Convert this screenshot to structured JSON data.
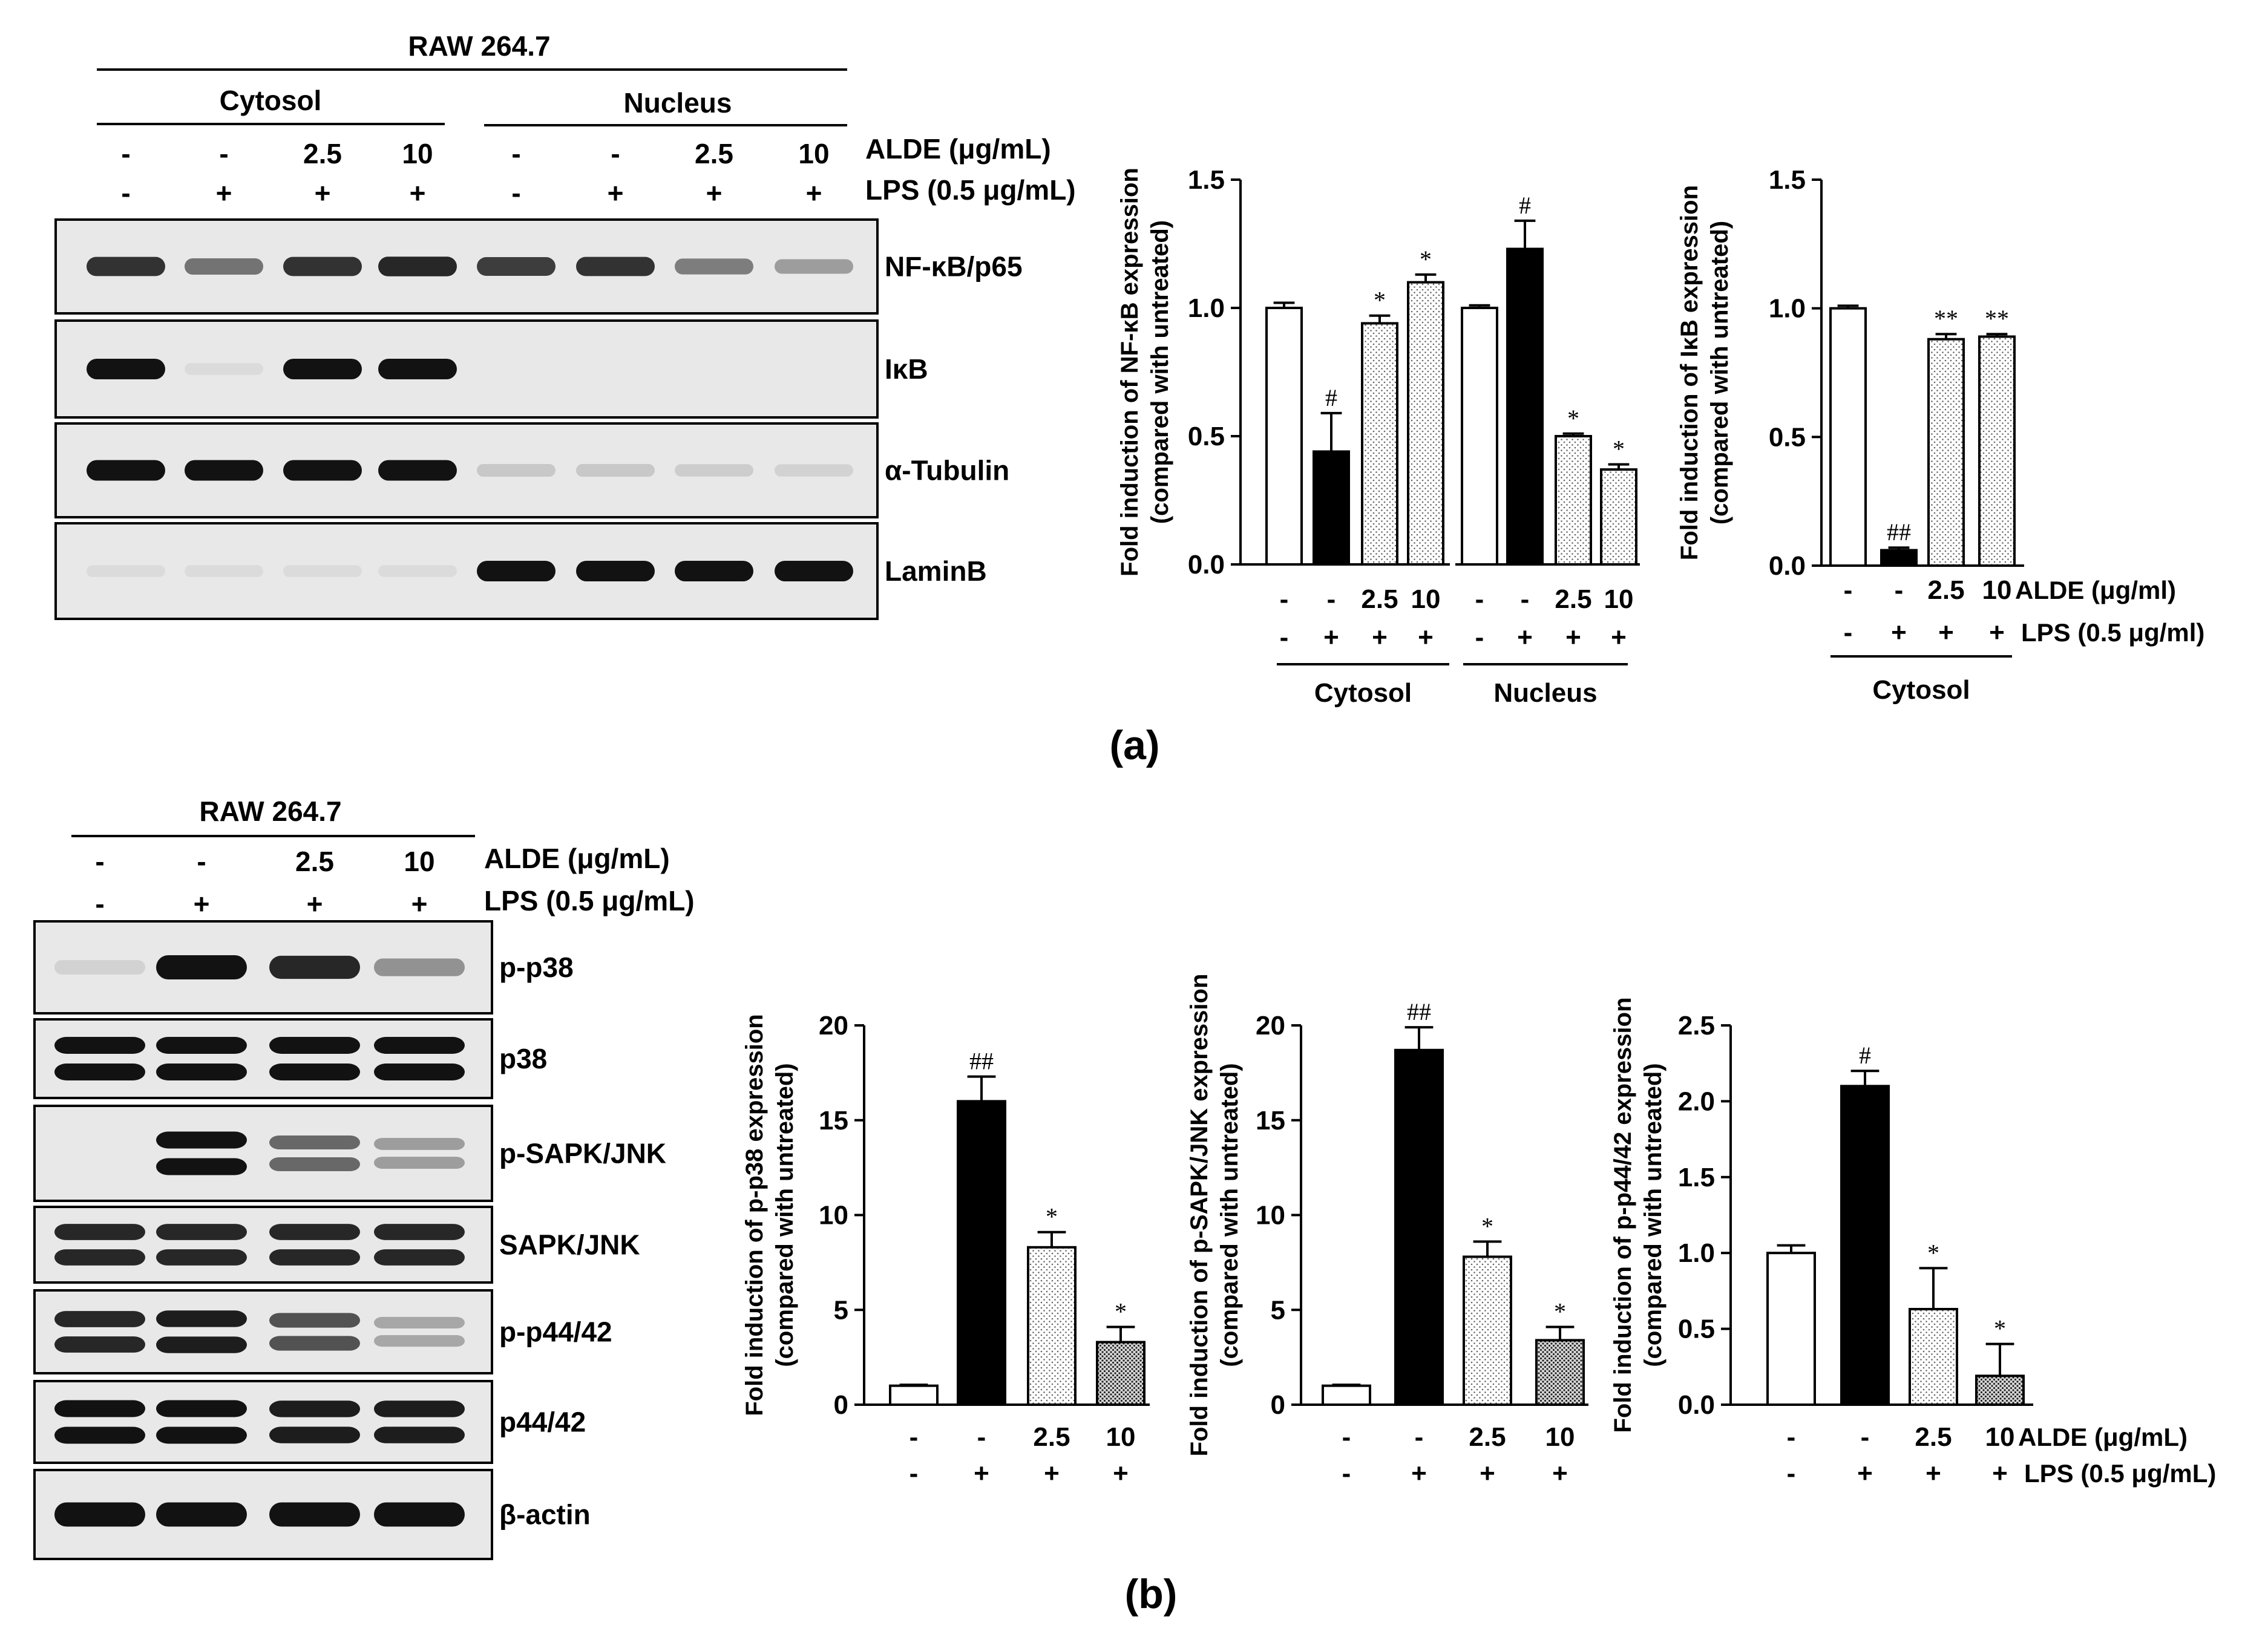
{
  "panel_a": {
    "cell_line": "RAW 264.7",
    "cytosol_label": "Cytosol",
    "nucleus_label": "Nucleus",
    "aldes": [
      "-",
      "-",
      "2.5",
      "10",
      "-",
      "-",
      "2.5",
      "10"
    ],
    "lps": [
      "-",
      "+",
      "+",
      "+",
      "-",
      "+",
      "+",
      "+"
    ],
    "ald_label": "ALDE (μg/mL)",
    "lps_label": "LPS (0.5 μg/mL)",
    "blot_labels": [
      "NF-κB/p65",
      "IκB",
      "α-Tubulin",
      "LaminB"
    ],
    "blots": [
      [
        0.85,
        0.55,
        0.85,
        0.9,
        0.8,
        0.85,
        0.5,
        0.35
      ],
      [
        1.0,
        0.05,
        1.0,
        1.0,
        0,
        0,
        0,
        0
      ],
      [
        1.0,
        1.0,
        1.0,
        1.0,
        0.15,
        0.15,
        0.12,
        0.1
      ],
      [
        0.05,
        0.05,
        0.05,
        0.05,
        1.0,
        1.0,
        1.0,
        1.0
      ]
    ],
    "caption": "(a)"
  },
  "panel_b": {
    "cell_line": "RAW 264.7",
    "aldes": [
      "-",
      "-",
      "2.5",
      "10"
    ],
    "lps": [
      "-",
      "+",
      "+",
      "+"
    ],
    "ald_label": "ALDE (μg/mL)",
    "lps_label": "LPS (0.5 μg/mL)",
    "blot_labels": [
      "p-p38",
      "p38",
      "p-SAPK/JNK",
      "SAPK/JNK",
      "p-p44/42",
      "p44/42",
      "β-actin"
    ],
    "blots": [
      [
        0.1,
        1.0,
        0.9,
        0.4
      ],
      [
        1.0,
        1.0,
        1.0,
        1.0
      ],
      [
        0.0,
        1.0,
        0.6,
        0.35
      ],
      [
        0.9,
        0.9,
        0.9,
        0.9
      ],
      [
        0.9,
        0.95,
        0.7,
        0.3
      ],
      [
        1.0,
        1.0,
        0.95,
        0.95
      ],
      [
        1.0,
        1.0,
        1.0,
        1.0
      ]
    ],
    "caption": "(b)"
  },
  "chart_data": [
    {
      "type": "bar",
      "ylabel": "Fold induction of NF-κB expression (compared with untreated)",
      "ylim": [
        0,
        1.5
      ],
      "yticks": [
        "0.0",
        "0.5",
        "1.0",
        "1.5"
      ],
      "ald": [
        "-",
        "-",
        "2.5",
        "10",
        "-",
        "-",
        "2.5",
        "10"
      ],
      "lps": [
        "-",
        "+",
        "+",
        "+",
        "-",
        "+",
        "+",
        "+"
      ],
      "groups": [
        "Cytosol",
        "Nucleus"
      ],
      "values": [
        1.0,
        0.44,
        0.94,
        1.1,
        1.0,
        1.23,
        0.5,
        0.37
      ],
      "errors": [
        0.02,
        0.15,
        0.03,
        0.03,
        0.01,
        0.11,
        0.01,
        0.02
      ],
      "marks": [
        "",
        "#",
        "*",
        "*",
        "",
        "#",
        "*",
        "*"
      ]
    },
    {
      "type": "bar",
      "ylabel": "Fold induction of IκB expression (compared with untreated)",
      "ylim": [
        0,
        1.5
      ],
      "yticks": [
        "0.0",
        "0.5",
        "1.0",
        "1.5"
      ],
      "ald": [
        "-",
        "-",
        "2.5",
        "10"
      ],
      "lps": [
        "-",
        "+",
        "+",
        "+"
      ],
      "ald_label": "ALDE (μg/ml)",
      "lps_label": "LPS (0.5 μg/ml)",
      "groups": [
        "Cytosol"
      ],
      "values": [
        1.0,
        0.06,
        0.88,
        0.89
      ],
      "errors": [
        0.01,
        0.01,
        0.02,
        0.01
      ],
      "marks": [
        "",
        "##",
        "**",
        "**"
      ]
    },
    {
      "type": "bar",
      "ylabel": "Fold induction of p-p38 expression (compared with untreated)",
      "ylim": [
        0,
        20
      ],
      "yticks": [
        "0",
        "5",
        "10",
        "15",
        "20"
      ],
      "ald": [
        "-",
        "-",
        "2.5",
        "10"
      ],
      "lps": [
        "-",
        "+",
        "+",
        "+"
      ],
      "values": [
        1.0,
        16.0,
        8.3,
        3.3
      ],
      "errors": [
        0.05,
        1.3,
        0.8,
        0.8
      ],
      "marks": [
        "",
        "##",
        "*",
        "*"
      ]
    },
    {
      "type": "bar",
      "ylabel": "Fold induction of p-SAPK/JNK expression (compared with untreated)",
      "ylim": [
        0,
        20
      ],
      "yticks": [
        "0",
        "5",
        "10",
        "15",
        "20"
      ],
      "ald": [
        "-",
        "-",
        "2.5",
        "10"
      ],
      "lps": [
        "-",
        "+",
        "+",
        "+"
      ],
      "values": [
        1.0,
        18.7,
        7.8,
        3.4
      ],
      "errors": [
        0.05,
        1.2,
        0.8,
        0.7
      ],
      "marks": [
        "",
        "##",
        "*",
        "*"
      ]
    },
    {
      "type": "bar",
      "ylabel": "Fold induction of p-p44/42 expression (compared with untreated)",
      "ylim": [
        0,
        2.5
      ],
      "yticks": [
        "0.0",
        "0.5",
        "1.0",
        "1.5",
        "2.0",
        "2.5"
      ],
      "ald": [
        "-",
        "-",
        "2.5",
        "10"
      ],
      "lps": [
        "-",
        "+",
        "+",
        "+"
      ],
      "ald_label": "ALDE (μg/mL)",
      "lps_label": "LPS (0.5 μg/mL)",
      "values": [
        1.0,
        2.1,
        0.63,
        0.19
      ],
      "errors": [
        0.05,
        0.1,
        0.27,
        0.21
      ],
      "marks": [
        "",
        "#",
        "*",
        "*"
      ]
    }
  ],
  "colors": {
    "ink": "#000000",
    "paper": "#ffffff",
    "bar_control": "#ffffff",
    "bar_lps": "#000000",
    "bar_dotted": "#efefef",
    "bar_dense": "#b4b4b4",
    "blot_bg": "#e8e8e8",
    "band": "#121212"
  }
}
